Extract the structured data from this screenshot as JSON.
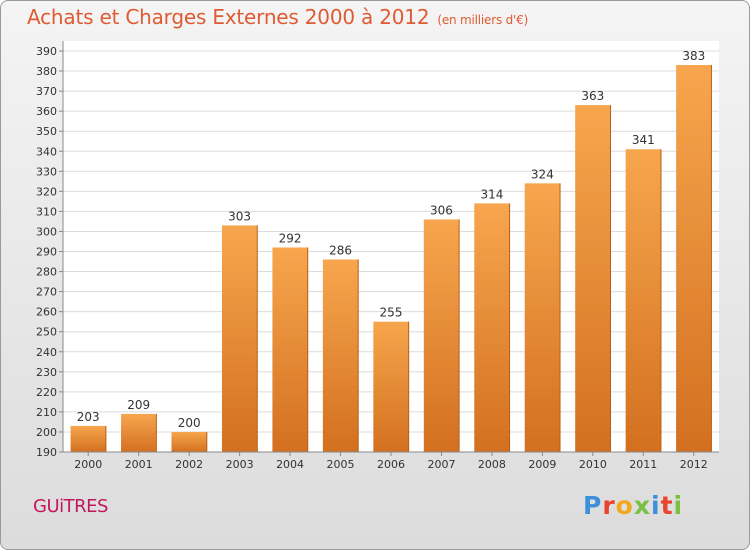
{
  "chart_data": {
    "type": "bar",
    "title": "Achats et Charges Externes 2000 à 2012",
    "subtitle": "(en milliers d'€)",
    "categories": [
      "2000",
      "2001",
      "2002",
      "2003",
      "2004",
      "2005",
      "2006",
      "2007",
      "2008",
      "2009",
      "2010",
      "2011",
      "2012"
    ],
    "values": [
      203,
      209,
      200,
      303,
      292,
      286,
      255,
      306,
      314,
      324,
      363,
      341,
      383
    ],
    "ylim": [
      190,
      390
    ],
    "yticks": [
      190,
      200,
      210,
      220,
      230,
      240,
      250,
      260,
      270,
      280,
      290,
      300,
      310,
      320,
      330,
      340,
      350,
      360,
      370,
      380,
      390
    ],
    "grid": true,
    "bar_color": "#f39c3c",
    "bar_color_dark": "#d9762a"
  },
  "footer": {
    "city": "GUiTRES",
    "brand": "Proxiti",
    "brand_colors": [
      "#3c8fd8",
      "#e8442e",
      "#f2a81d",
      "#7ac142",
      "#3c8fd8",
      "#e8442e",
      "#7ac142"
    ]
  }
}
